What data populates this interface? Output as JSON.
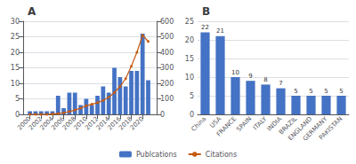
{
  "chart_data": [
    {
      "type": "bar",
      "title": "A",
      "x": [
        2000,
        2001,
        2002,
        2003,
        2004,
        2005,
        2006,
        2007,
        2008,
        2009,
        2010,
        2011,
        2012,
        2013,
        2014,
        2015,
        2016,
        2017,
        2018,
        2019,
        2020,
        2021
      ],
      "xlim": [
        1998.8,
        2022.5
      ],
      "xticks": [
        2000,
        2002,
        2004,
        2006,
        2008,
        2010,
        2012,
        2014,
        2016,
        2018,
        2020
      ],
      "ylim": [
        0,
        30
      ],
      "yticks": [
        0,
        5,
        10,
        15,
        20,
        25,
        30
      ],
      "y2lim": [
        0,
        600
      ],
      "y2ticks": [
        0,
        100,
        200,
        300,
        400,
        500,
        600
      ],
      "grid": true,
      "legend": "bottom",
      "series": [
        {
          "name": "Publcations",
          "type": "bar",
          "color": "#4472C4",
          "values": [
            1,
            1,
            1,
            1,
            1,
            6,
            2,
            7,
            7,
            3,
            5,
            3,
            6,
            9,
            7,
            15,
            12,
            9,
            14,
            14,
            26,
            11
          ]
        },
        {
          "name": "Citations",
          "type": "line",
          "color": "#C55A11",
          "marker": "circle",
          "axis": "y2",
          "values": [
            0,
            0,
            0,
            0,
            2,
            5,
            10,
            18,
            28,
            40,
            55,
            65,
            75,
            90,
            110,
            140,
            180,
            230,
            310,
            400,
            510,
            470
          ]
        }
      ]
    },
    {
      "type": "bar",
      "title": "B",
      "categories": [
        "China",
        "USA",
        "FRANCE",
        "SPAIN",
        "ITALY",
        "INDIA",
        "BRAZIL",
        "ENGLAND",
        "GERMANY",
        "PAKISTAN"
      ],
      "values": [
        22,
        21,
        10,
        9,
        8,
        7,
        5,
        5,
        5,
        5
      ],
      "color": "#4472C4",
      "ylim": [
        0,
        25
      ],
      "yticks": [
        0,
        5,
        10,
        15,
        20,
        25
      ],
      "grid": true,
      "data_labels": true
    }
  ]
}
